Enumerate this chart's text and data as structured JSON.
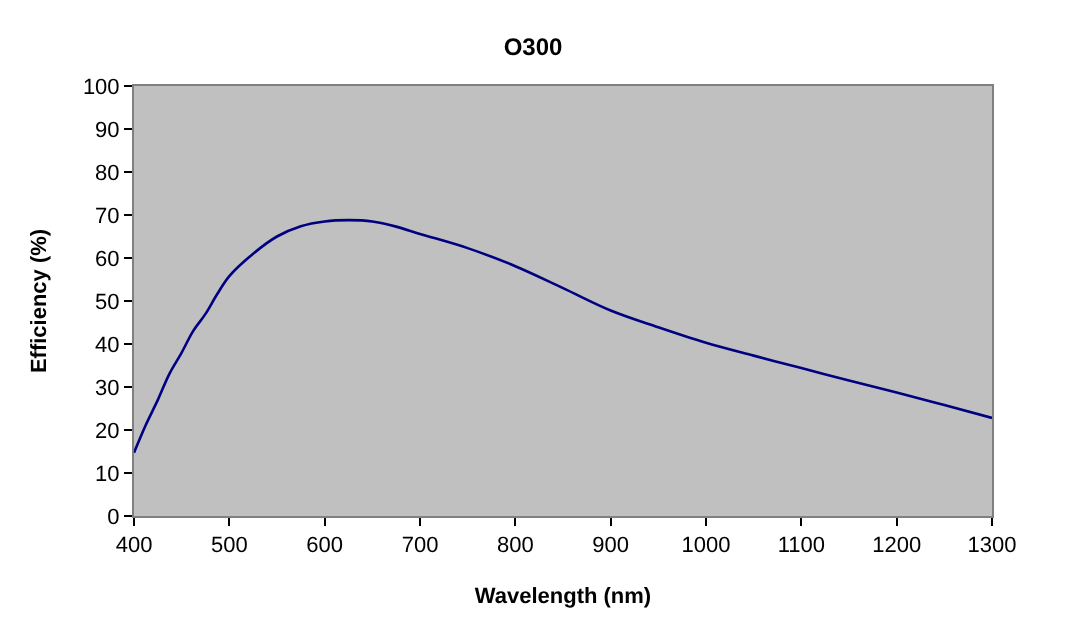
{
  "chart_data": {
    "type": "line",
    "title": "O300",
    "xlabel": "Wavelength (nm)",
    "ylabel": "Efficiency (%)",
    "x": [
      400,
      412,
      425,
      437,
      450,
      462,
      475,
      487,
      500,
      525,
      550,
      575,
      600,
      625,
      650,
      675,
      700,
      750,
      800,
      850,
      900,
      950,
      1000,
      1050,
      1100,
      1150,
      1200,
      1250,
      1300
    ],
    "series": [
      {
        "color": "#000080",
        "values": [
          14.7,
          21,
          27,
          33,
          38,
          43,
          47,
          51.5,
          55.8,
          61,
          65,
          67.4,
          68.5,
          68.8,
          68.5,
          67.3,
          65.6,
          62.3,
          58.1,
          53,
          47.8,
          43.9,
          40.3,
          37.3,
          34.4,
          31.5,
          28.7,
          25.8,
          22.8
        ]
      }
    ],
    "xlim": [
      400,
      1300
    ],
    "xticks": [
      400,
      500,
      600,
      700,
      800,
      900,
      1000,
      1100,
      1200,
      1300
    ],
    "ylim": [
      0,
      100
    ],
    "yticks": [
      0,
      10,
      20,
      30,
      40,
      50,
      60,
      70,
      80,
      90,
      100
    ],
    "grid": false,
    "marker": "none",
    "line_style": "solid"
  }
}
